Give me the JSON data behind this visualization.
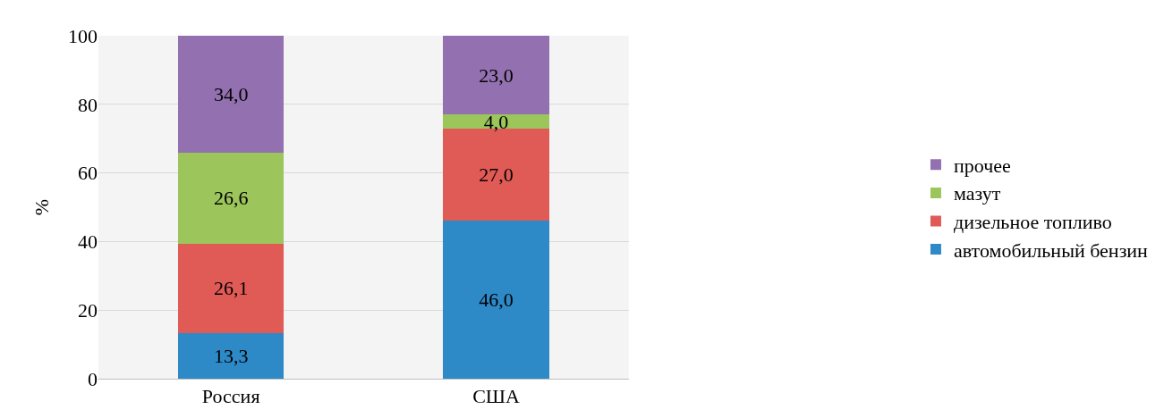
{
  "chart_data": {
    "type": "bar",
    "stacked": true,
    "ylabel": "%",
    "categories": [
      "Россия",
      "США"
    ],
    "series": [
      {
        "name": "автомобильный бензин",
        "color": "#2e89c7",
        "values": [
          13.3,
          46.0
        ],
        "value_labels": [
          "13,3",
          "46,0"
        ]
      },
      {
        "name": "дизельное топливо",
        "color": "#e15b56",
        "values": [
          26.1,
          27.0
        ],
        "value_labels": [
          "26,1",
          "27,0"
        ]
      },
      {
        "name": "мазут",
        "color": "#9cc55b",
        "values": [
          26.6,
          4.0
        ],
        "value_labels": [
          "26,6",
          "4,0"
        ]
      },
      {
        "name": "прочее",
        "color": "#9370b0",
        "values": [
          34.0,
          23.0
        ],
        "value_labels": [
          "34,0",
          "23,0"
        ]
      }
    ],
    "ylim": [
      0,
      100
    ],
    "yticks": [
      0,
      20,
      40,
      60,
      80,
      100
    ],
    "grid": "y",
    "legend": "right"
  }
}
